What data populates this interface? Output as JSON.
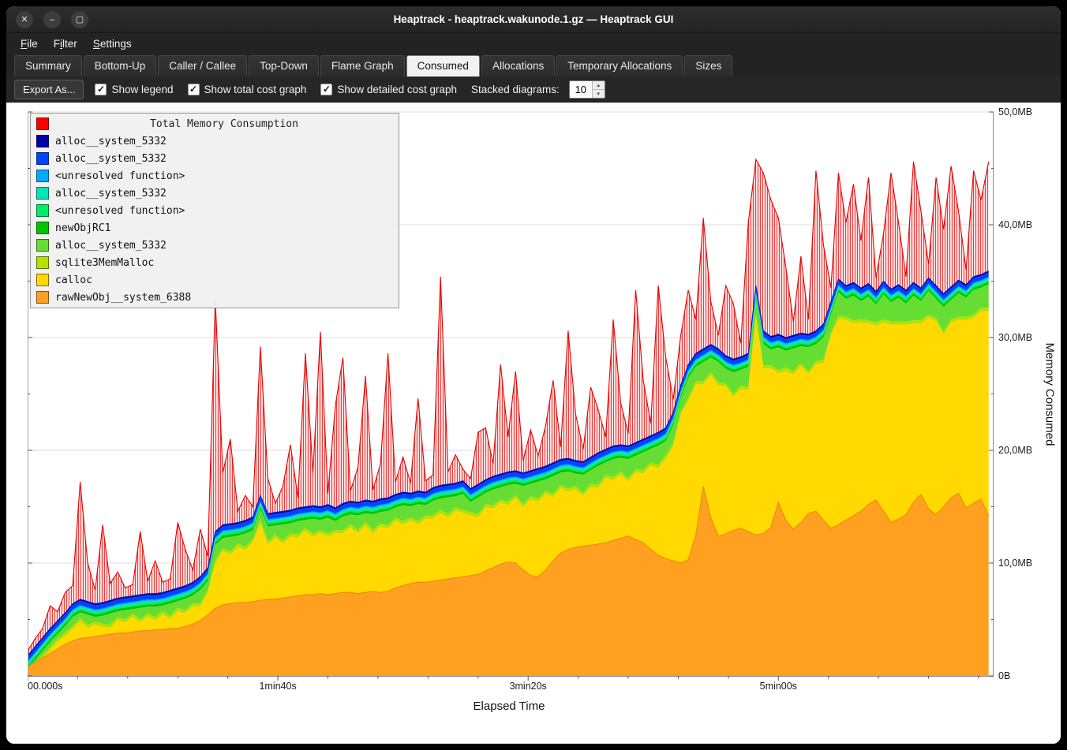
{
  "window": {
    "title": "Heaptrack - heaptrack.wakunode.1.gz — Heaptrack GUI"
  },
  "icons": {
    "close": "✕",
    "minimize": "–",
    "maximize": "▢",
    "checkmark": "✓",
    "spin_up": "▴",
    "spin_down": "▾"
  },
  "menu": {
    "items": [
      {
        "text": "File",
        "underline": 0
      },
      {
        "text": "Filter",
        "underline": 1
      },
      {
        "text": "Settings",
        "underline": 0
      }
    ]
  },
  "tabs": [
    {
      "label": "Summary",
      "active": false
    },
    {
      "label": "Bottom-Up",
      "active": false
    },
    {
      "label": "Caller / Callee",
      "active": false
    },
    {
      "label": "Top-Down",
      "active": false
    },
    {
      "label": "Flame Graph",
      "active": false
    },
    {
      "label": "Consumed",
      "active": true
    },
    {
      "label": "Allocations",
      "active": false
    },
    {
      "label": "Temporary Allocations",
      "active": false
    },
    {
      "label": "Sizes",
      "active": false
    }
  ],
  "toolbar": {
    "export_label": "Export As...",
    "checkboxes": [
      {
        "label": "Show legend",
        "checked": true
      },
      {
        "label": "Show total cost graph",
        "checked": true
      },
      {
        "label": "Show detailed cost graph",
        "checked": true
      }
    ],
    "stacked_label": "Stacked diagrams:",
    "stacked_value": "10"
  },
  "legend": {
    "title": "Total Memory Consumption",
    "title_color": "#ff0000",
    "entries": [
      {
        "label": "alloc__system_5332",
        "color": "#0000aa"
      },
      {
        "label": "alloc__system_5332",
        "color": "#0044ff"
      },
      {
        "label": "<unresolved function>",
        "color": "#00aaff"
      },
      {
        "label": "alloc__system_5332",
        "color": "#00e6b8"
      },
      {
        "label": "<unresolved function>",
        "color": "#00ee66"
      },
      {
        "label": "newObjRC1",
        "color": "#00c400"
      },
      {
        "label": "alloc__system_5332",
        "color": "#66dd33"
      },
      {
        "label": "sqlite3MemMalloc",
        "color": "#b5e000"
      },
      {
        "label": "calloc",
        "color": "#ffd900"
      },
      {
        "label": "rawNewObj__system_6388",
        "color": "#ffa020"
      }
    ]
  },
  "axes": {
    "x_label": "Elapsed Time",
    "y_label": "Memory Consumed",
    "y_ticks": [
      {
        "mb": 50,
        "label": "50,0MB"
      },
      {
        "mb": 40,
        "label": "40,0MB"
      },
      {
        "mb": 30,
        "label": "30,0MB"
      },
      {
        "mb": 20,
        "label": "20,0MB"
      },
      {
        "mb": 10,
        "label": "10,0MB"
      },
      {
        "mb": 0,
        "label": "0B"
      }
    ],
    "x_ticks": [
      {
        "seconds": 0,
        "label": "00.000s"
      },
      {
        "seconds": 100,
        "label": "1min40s"
      },
      {
        "seconds": 200,
        "label": "3min20s"
      },
      {
        "seconds": 300,
        "label": "5min00s"
      }
    ]
  },
  "chart_data": {
    "type": "area",
    "stacked": true,
    "unit": "MB",
    "ylim": [
      0,
      50
    ],
    "x_seconds_step": 3,
    "x_seconds_max": 386,
    "colors": {
      "rawNewObj__system_6388": "#ffa020",
      "calloc": "#ffd900",
      "sqlite3MemMalloc": "#b5e000",
      "alloc__system_5332_green": "#66dd33",
      "newObjRC1": "#00c400",
      "unresolved_springgreen": "#00ee66",
      "alloc__system_5332_turquoise": "#00e6b8",
      "unresolved_lightblue": "#00aaff",
      "alloc__system_5332_blue": "#0044ff",
      "alloc__system_5332_darkblue": "#0000aa",
      "total": "#e60000"
    },
    "band_thickness_MB": {
      "alloc__system_5332_darkblue": 0.14,
      "alloc__system_5332_blue": 0.38,
      "unresolved_lightblue": 0.12,
      "alloc__system_5332_turquoise": 0.15,
      "unresolved_springgreen": 0.16,
      "newObjRC1": 0.22,
      "sqlite3MemMalloc": 0.28
    },
    "rawNewObj_top": [
      0.8,
      1.2,
      1.6,
      2.0,
      2.4,
      2.8,
      3.1,
      3.3,
      3.4,
      3.5,
      3.6,
      3.7,
      3.8,
      3.8,
      3.9,
      4.0,
      4.0,
      4.1,
      4.1,
      4.2,
      4.2,
      4.4,
      4.6,
      4.9,
      5.4,
      6.0,
      6.3,
      6.4,
      6.5,
      6.5,
      6.6,
      6.7,
      6.8,
      6.8,
      6.9,
      7.0,
      7.1,
      7.2,
      7.2,
      7.3,
      7.2,
      7.3,
      7.4,
      7.4,
      7.3,
      7.4,
      7.5,
      7.4,
      7.5,
      7.8,
      8.0,
      8.2,
      8.3,
      8.3,
      8.4,
      8.5,
      8.6,
      8.7,
      8.8,
      8.9,
      9.0,
      9.3,
      9.6,
      9.9,
      10.1,
      10.0,
      9.4,
      8.9,
      8.8,
      9.4,
      10.2,
      10.9,
      11.2,
      11.4,
      11.5,
      11.6,
      11.7,
      11.8,
      12.0,
      12.2,
      12.4,
      12.1,
      11.8,
      11.2,
      10.7,
      10.4,
      10.2,
      10.0,
      10.3,
      12.5,
      16.8,
      14.0,
      12.4,
      12.6,
      12.9,
      13.1,
      12.8,
      12.5,
      12.6,
      13.2,
      15.4,
      13.8,
      13.0,
      13.6,
      14.4,
      14.6,
      13.8,
      13.1,
      13.4,
      13.8,
      14.2,
      14.6,
      15.2,
      15.6,
      14.6,
      13.6,
      13.9,
      14.3,
      15.4,
      16.1,
      14.8,
      14.3,
      15.0,
      15.8,
      16.2,
      14.9,
      15.3,
      15.7,
      14.2
    ],
    "alloc_green_extra": [
      0.2,
      0.3,
      0.4,
      0.5,
      0.4,
      0.6,
      0.8,
      0.5,
      0.9,
      0.4,
      0.7,
      1.0,
      0.5,
      0.8,
      0.4,
      1.0,
      0.6,
      0.9,
      0.5,
      1.1,
      0.6,
      1.0,
      0.7,
      1.2,
      0.8,
      1.4,
      0.9,
      1.3,
      0.7,
      1.2,
      0.8,
      1.0,
      1.3,
      0.8,
      1.4,
      0.9,
      1.2,
      0.7,
      1.3,
      0.9,
      1.4,
      0.8,
      1.2,
      0.9,
      1.3,
      0.8,
      1.4,
      1.0,
      1.3,
      0.9,
      1.4,
      1.0,
      1.5,
      0.9,
      1.3,
      1.0,
      1.5,
      1.0,
      1.4,
      0.9,
      1.5,
      1.0,
      1.4,
      1.1,
      1.5,
      1.0,
      1.6,
      1.1,
      1.5,
      1.0,
      1.6,
      1.1,
      1.5,
      1.1,
      1.6,
      1.2,
      1.7,
      1.1,
      1.6,
      1.2,
      1.7,
      1.2,
      1.6,
      1.2,
      1.7,
      1.3,
      1.6,
      1.2,
      1.8,
      1.3,
      1.7,
      1.3,
      1.8,
      1.3,
      1.9,
      1.4,
      1.8,
      1.4,
      1.9,
      1.4,
      2.0,
      1.5,
      2.0,
      1.5,
      2.1,
      1.5,
      2.0,
      1.6,
      2.1,
      1.6,
      2.2,
      1.6,
      2.1,
      1.6,
      2.2,
      1.7,
      2.1,
      1.6,
      2.2,
      1.7,
      2.1,
      1.7,
      2.2,
      1.7,
      2.1,
      1.7,
      2.2,
      1.8,
      2.1
    ],
    "stack_top": [
      1.8,
      2.6,
      3.4,
      4.2,
      4.9,
      5.6,
      6.4,
      6.8,
      6.6,
      6.4,
      6.5,
      6.7,
      6.9,
      7.0,
      7.1,
      7.2,
      7.3,
      7.3,
      7.4,
      7.6,
      7.8,
      8.0,
      8.3,
      8.8,
      9.6,
      12.8,
      13.4,
      13.5,
      13.6,
      13.8,
      14.1,
      16.0,
      14.4,
      14.5,
      14.6,
      14.7,
      14.9,
      15.0,
      15.1,
      15.0,
      15.2,
      14.9,
      15.3,
      15.5,
      15.4,
      15.6,
      15.5,
      15.7,
      15.8,
      16.1,
      16.3,
      16.2,
      16.4,
      16.3,
      16.7,
      16.9,
      17.0,
      17.1,
      17.3,
      16.6,
      17.0,
      17.4,
      17.7,
      17.9,
      18.1,
      18.2,
      18.0,
      18.2,
      18.4,
      18.6,
      18.9,
      19.2,
      19.3,
      19.1,
      19.0,
      19.4,
      19.8,
      20.1,
      20.4,
      20.5,
      20.4,
      20.7,
      21.0,
      21.3,
      21.6,
      22.0,
      23.4,
      25.8,
      27.6,
      28.6,
      29.0,
      29.4,
      29.0,
      28.4,
      28.1,
      28.3,
      28.6,
      34.6,
      30.6,
      30.1,
      30.3,
      30.0,
      30.2,
      30.4,
      30.3,
      30.6,
      31.2,
      33.2,
      35.2,
      34.6,
      34.9,
      34.4,
      34.8,
      34.1,
      35.0,
      34.3,
      34.7,
      34.2,
      34.9,
      34.4,
      35.3,
      34.6,
      33.9,
      34.5,
      35.1,
      34.7,
      35.4,
      35.6,
      35.9
    ],
    "total": [
      2.2,
      3.3,
      4.2,
      6.2,
      5.7,
      7.4,
      8.0,
      17.2,
      10.0,
      7.6,
      13.4,
      8.2,
      9.2,
      7.8,
      8.1,
      12.8,
      8.4,
      10.2,
      8.3,
      8.6,
      13.6,
      11.2,
      9.4,
      13.0,
      10.6,
      33.4,
      18.0,
      21.0,
      14.6,
      16.0,
      15.0,
      29.2,
      17.5,
      15.3,
      16.8,
      20.5,
      15.8,
      28.6,
      18.0,
      30.5,
      16.2,
      24.0,
      28.2,
      16.4,
      18.5,
      26.6,
      16.5,
      18.8,
      28.6,
      17.2,
      19.4,
      17.1,
      24.6,
      17.3,
      17.8,
      35.4,
      18.1,
      19.6,
      18.3,
      17.5,
      21.6,
      22.0,
      18.8,
      27.6,
      21.2,
      27.0,
      19.1,
      21.8,
      19.5,
      22.2,
      26.2,
      20.3,
      30.6,
      23.2,
      20.1,
      25.6,
      23.6,
      21.2,
      31.6,
      24.2,
      21.5,
      34.2,
      26.2,
      22.4,
      34.6,
      28.2,
      24.5,
      30.2,
      34.2,
      31.6,
      40.6,
      33.2,
      30.2,
      34.6,
      33.0,
      29.5,
      40.2,
      45.8,
      44.6,
      42.2,
      40.6,
      36.2,
      31.4,
      37.2,
      31.6,
      44.8,
      38.2,
      34.4,
      44.6,
      40.2,
      43.6,
      38.6,
      44.2,
      35.3,
      39.2,
      44.6,
      40.2,
      35.4,
      45.6,
      41.2,
      36.5,
      44.2,
      39.6,
      45.2,
      41.2,
      36.0,
      44.8,
      42.2,
      45.6
    ]
  }
}
